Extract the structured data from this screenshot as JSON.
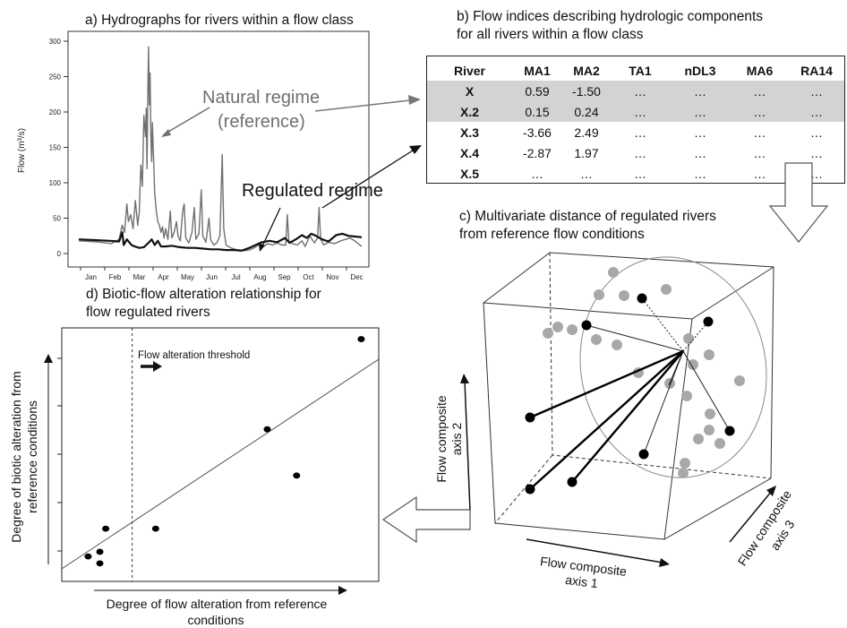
{
  "panel_a": {
    "title": "a) Hydrographs for rivers within a flow class",
    "natural_label_line1": "Natural regime",
    "natural_label_line2": "(reference)",
    "regulated_label": "Regulated regime",
    "ylabel": "Flow (m³/s)",
    "colors": {
      "natural": "#707070",
      "regulated": "#111111"
    }
  },
  "panel_b": {
    "title_line1": "b) Flow indices describing hydrologic components",
    "title_line2": "for all rivers within a flow class",
    "columns": [
      "River",
      "MA1",
      "MA2",
      "TA1",
      "nDL3",
      "MA6",
      "RA14"
    ],
    "rows": [
      {
        "river": "X",
        "values": [
          "0.59",
          "-1.50",
          "…",
          "…",
          "…",
          "…"
        ],
        "highlight": true
      },
      {
        "river": "X.2",
        "values": [
          "0.15",
          "0.24",
          "…",
          "…",
          "…",
          "…"
        ],
        "highlight": true
      },
      {
        "river": "X.3",
        "values": [
          "-3.66",
          "2.49",
          "…",
          "…",
          "…",
          "…"
        ],
        "highlight": false
      },
      {
        "river": "X.4",
        "values": [
          "-2.87",
          "1.97",
          "…",
          "…",
          "…",
          "…"
        ],
        "highlight": false
      },
      {
        "river": "X.5",
        "values": [
          "…",
          "…",
          "…",
          "…",
          "…",
          "…"
        ],
        "highlight": false
      }
    ],
    "highlight_color": "#d3d3d3"
  },
  "panel_c": {
    "title_line1": "c) Multivariate distance of regulated rivers",
    "title_line2": "from reference flow conditions",
    "axis1_line1": "Flow composite",
    "axis1_line2": "axis 1",
    "axis2_line1": "Flow composite",
    "axis2_line2": "axis 2",
    "axis3_line1": "Flow composite",
    "axis3_line2": "axis 3",
    "colors": {
      "reference": "#a8a8a8",
      "regulated": "#000000"
    }
  },
  "panel_d": {
    "title_line1": "d) Biotic-flow alteration relationship for",
    "title_line2": "flow regulated rivers",
    "threshold_label": "Flow alteration threshold",
    "xlabel_line1": "Degree of flow alteration from reference",
    "xlabel_line2": "conditions",
    "ylabel_line1": "Degree of biotic alteration from",
    "ylabel_line2": "reference conditions"
  },
  "chart_data": [
    {
      "type": "line",
      "title": "a) Hydrographs for rivers within a flow class",
      "ylabel": "Flow (m³/s)",
      "xlabel": "",
      "categories": [
        "Jan",
        "Feb",
        "Mar",
        "Apr",
        "May",
        "Jun",
        "Jul",
        "Aug",
        "Sep",
        "Oct",
        "Nov",
        "Dec"
      ],
      "yticks": [
        0,
        50,
        100,
        150,
        200,
        250,
        300
      ],
      "ylim": [
        0,
        300
      ],
      "xlim": [
        0,
        365
      ],
      "series": [
        {
          "name": "Natural regime (reference)",
          "points": [
            [
              0,
              18
            ],
            [
              14,
              17
            ],
            [
              28,
              16
            ],
            [
              42,
              14
            ],
            [
              52,
              20
            ],
            [
              56,
              40
            ],
            [
              59,
              30
            ],
            [
              62,
              70
            ],
            [
              64,
              45
            ],
            [
              67,
              55
            ],
            [
              70,
              35
            ],
            [
              73,
              75
            ],
            [
              76,
              40
            ],
            [
              78,
              58
            ],
            [
              80,
              125
            ],
            [
              82,
              95
            ],
            [
              84,
              195
            ],
            [
              86,
              165
            ],
            [
              87,
              205
            ],
            [
              88,
              120
            ],
            [
              89,
              225
            ],
            [
              90,
              292
            ],
            [
              91,
              210
            ],
            [
              92,
              255
            ],
            [
              93,
              165
            ],
            [
              94,
              130
            ],
            [
              95,
              185
            ],
            [
              96,
              150
            ],
            [
              98,
              85
            ],
            [
              100,
              60
            ],
            [
              102,
              45
            ],
            [
              104,
              40
            ],
            [
              106,
              30
            ],
            [
              108,
              38
            ],
            [
              110,
              22
            ],
            [
              112,
              35
            ],
            [
              115,
              20
            ],
            [
              118,
              60
            ],
            [
              120,
              22
            ],
            [
              123,
              30
            ],
            [
              126,
              45
            ],
            [
              128,
              25
            ],
            [
              131,
              18
            ],
            [
              134,
              60
            ],
            [
              136,
              70
            ],
            [
              138,
              22
            ],
            [
              142,
              15
            ],
            [
              146,
              30
            ],
            [
              149,
              65
            ],
            [
              151,
              20
            ],
            [
              155,
              28
            ],
            [
              158,
              90
            ],
            [
              160,
              25
            ],
            [
              164,
              16
            ],
            [
              168,
              50
            ],
            [
              170,
              20
            ],
            [
              174,
              12
            ],
            [
              178,
              15
            ],
            [
              182,
              25
            ],
            [
              185,
              140
            ],
            [
              187,
              35
            ],
            [
              190,
              12
            ],
            [
              196,
              8
            ],
            [
              202,
              6
            ],
            [
              208,
              5
            ],
            [
              214,
              4
            ],
            [
              220,
              5
            ],
            [
              226,
              8
            ],
            [
              232,
              12
            ],
            [
              238,
              10
            ],
            [
              244,
              14
            ],
            [
              250,
              12
            ],
            [
              256,
              15
            ],
            [
              262,
              12
            ],
            [
              267,
              12
            ],
            [
              269,
              55
            ],
            [
              271,
              18
            ],
            [
              276,
              14
            ],
            [
              282,
              12
            ],
            [
              288,
              18
            ],
            [
              292,
              10
            ],
            [
              298,
              25
            ],
            [
              304,
              15
            ],
            [
              308,
              22
            ],
            [
              310,
              65
            ],
            [
              312,
              20
            ],
            [
              316,
              12
            ],
            [
              322,
              16
            ],
            [
              330,
              14
            ],
            [
              338,
              18
            ],
            [
              344,
              20
            ],
            [
              350,
              22
            ],
            [
              356,
              18
            ],
            [
              365,
              10
            ]
          ]
        },
        {
          "name": "Regulated regime",
          "points": [
            [
              0,
              20
            ],
            [
              20,
              19
            ],
            [
              40,
              18
            ],
            [
              52,
              17
            ],
            [
              56,
              30
            ],
            [
              58,
              12
            ],
            [
              62,
              20
            ],
            [
              68,
              12
            ],
            [
              72,
              10
            ],
            [
              78,
              8
            ],
            [
              84,
              9
            ],
            [
              90,
              15
            ],
            [
              94,
              20
            ],
            [
              98,
              12
            ],
            [
              102,
              18
            ],
            [
              106,
              10
            ],
            [
              112,
              10
            ],
            [
              120,
              11
            ],
            [
              130,
              9
            ],
            [
              140,
              8
            ],
            [
              150,
              8
            ],
            [
              160,
              7
            ],
            [
              170,
              6
            ],
            [
              180,
              6
            ],
            [
              190,
              5
            ],
            [
              200,
              5
            ],
            [
              210,
              4
            ],
            [
              220,
              8
            ],
            [
              228,
              12
            ],
            [
              236,
              16
            ],
            [
              246,
              18
            ],
            [
              256,
              16
            ],
            [
              266,
              22
            ],
            [
              272,
              15
            ],
            [
              280,
              20
            ],
            [
              288,
              26
            ],
            [
              294,
              22
            ],
            [
              300,
              28
            ],
            [
              306,
              25
            ],
            [
              314,
              20
            ],
            [
              322,
              17
            ],
            [
              332,
              26
            ],
            [
              340,
              28
            ],
            [
              348,
              25
            ],
            [
              356,
              24
            ],
            [
              365,
              23
            ]
          ]
        }
      ]
    },
    {
      "type": "scatter",
      "title": "d) Biotic-flow alteration relationship for flow regulated rivers",
      "xlabel": "Degree of flow alteration from reference conditions",
      "ylabel": "Degree of biotic alteration from reference conditions",
      "xlim": [
        0,
        100
      ],
      "ylim": [
        0,
        100
      ],
      "threshold_x": 20,
      "points": [
        [
          5,
          5
        ],
        [
          9,
          7
        ],
        [
          9,
          2
        ],
        [
          11,
          17
        ],
        [
          28,
          17
        ],
        [
          66,
          60
        ],
        [
          76,
          40
        ],
        [
          98,
          99
        ]
      ],
      "fit_line": [
        [
          0,
          3
        ],
        [
          100,
          87
        ]
      ]
    }
  ]
}
